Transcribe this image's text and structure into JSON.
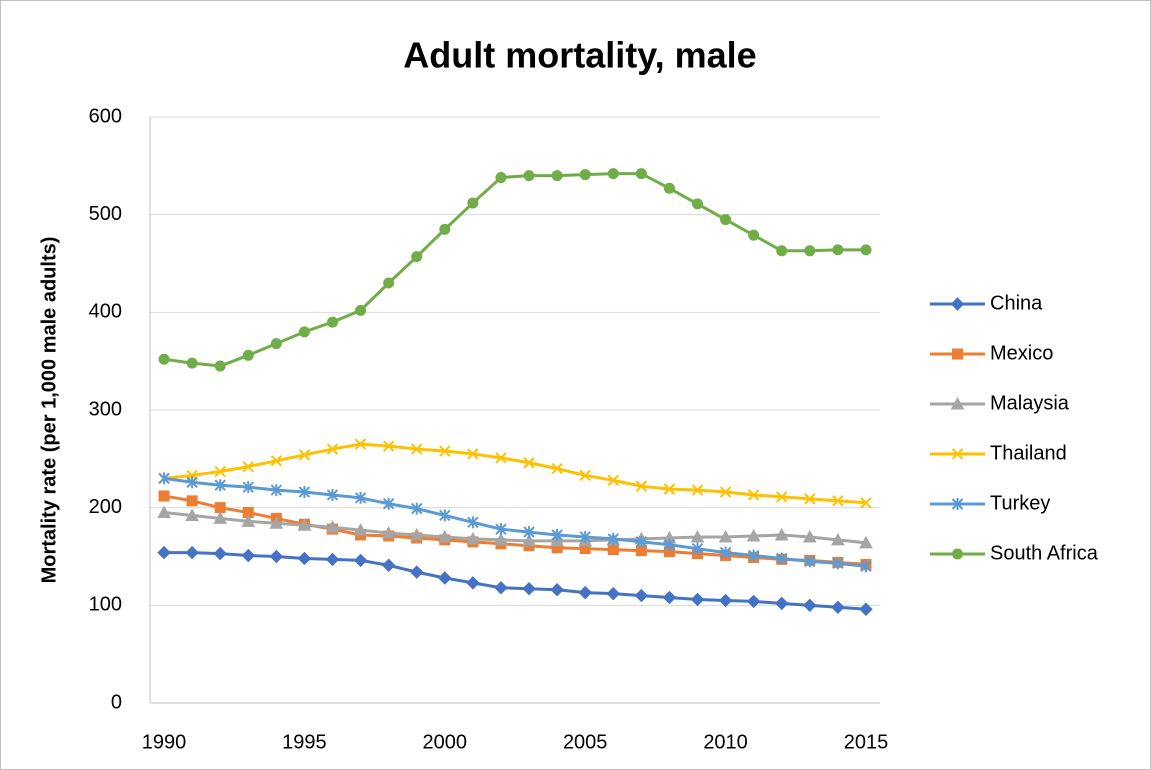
{
  "chart_data": {
    "type": "line",
    "title": "Adult mortality, male",
    "y_label": "Mortality rate (per 1,000 male adults)",
    "x": [
      1990,
      1991,
      1992,
      1993,
      1994,
      1995,
      1996,
      1997,
      1998,
      1999,
      2000,
      2001,
      2002,
      2003,
      2004,
      2005,
      2006,
      2007,
      2008,
      2009,
      2010,
      2011,
      2012,
      2013,
      2014,
      2015
    ],
    "xlim": [
      1989.5,
      2015.5
    ],
    "xticks": [
      1990,
      1995,
      2000,
      2005,
      2010,
      2015
    ],
    "ylim": [
      0,
      600
    ],
    "yticks": [
      0,
      100,
      200,
      300,
      400,
      500,
      600
    ],
    "grid": true,
    "legend": "right",
    "series": [
      {
        "name": "China",
        "color": "#4472c4",
        "marker": "diamond",
        "values": [
          154,
          154,
          153,
          151,
          150,
          148,
          147,
          146,
          141,
          134,
          128,
          123,
          118,
          117,
          116,
          113,
          112,
          110,
          108,
          106,
          105,
          104,
          102,
          100,
          98,
          96
        ]
      },
      {
        "name": "Mexico",
        "color": "#ed7d31",
        "marker": "square",
        "values": [
          212,
          207,
          200,
          195,
          189,
          183,
          178,
          172,
          171,
          169,
          167,
          165,
          163,
          161,
          159,
          158,
          157,
          156,
          155,
          153,
          151,
          149,
          147,
          146,
          144,
          142
        ]
      },
      {
        "name": "Malaysia",
        "color": "#a5a5a5",
        "marker": "triangle",
        "values": [
          195,
          192,
          189,
          186,
          184,
          182,
          180,
          177,
          174,
          172,
          170,
          168,
          167,
          166,
          166,
          166,
          167,
          168,
          169,
          170,
          170,
          171,
          172,
          170,
          167,
          164
        ]
      },
      {
        "name": "Thailand",
        "color": "#ffc000",
        "marker": "x",
        "values": [
          230,
          233,
          237,
          242,
          248,
          254,
          260,
          265,
          263,
          260,
          258,
          255,
          251,
          246,
          240,
          233,
          228,
          222,
          219,
          218,
          216,
          213,
          211,
          209,
          207,
          205
        ]
      },
      {
        "name": "Turkey",
        "color": "#5b9bd5",
        "marker": "star",
        "values": [
          230,
          226,
          223,
          221,
          218,
          216,
          213,
          210,
          204,
          199,
          192,
          185,
          178,
          175,
          172,
          170,
          168,
          165,
          162,
          158,
          154,
          151,
          148,
          145,
          143,
          140
        ]
      },
      {
        "name": "South Africa",
        "color": "#70ad47",
        "marker": "circle",
        "values": [
          352,
          348,
          345,
          356,
          368,
          380,
          390,
          402,
          430,
          457,
          485,
          512,
          538,
          540,
          540,
          541,
          542,
          542,
          527,
          511,
          495,
          479,
          463,
          463,
          464,
          464
        ]
      }
    ]
  }
}
